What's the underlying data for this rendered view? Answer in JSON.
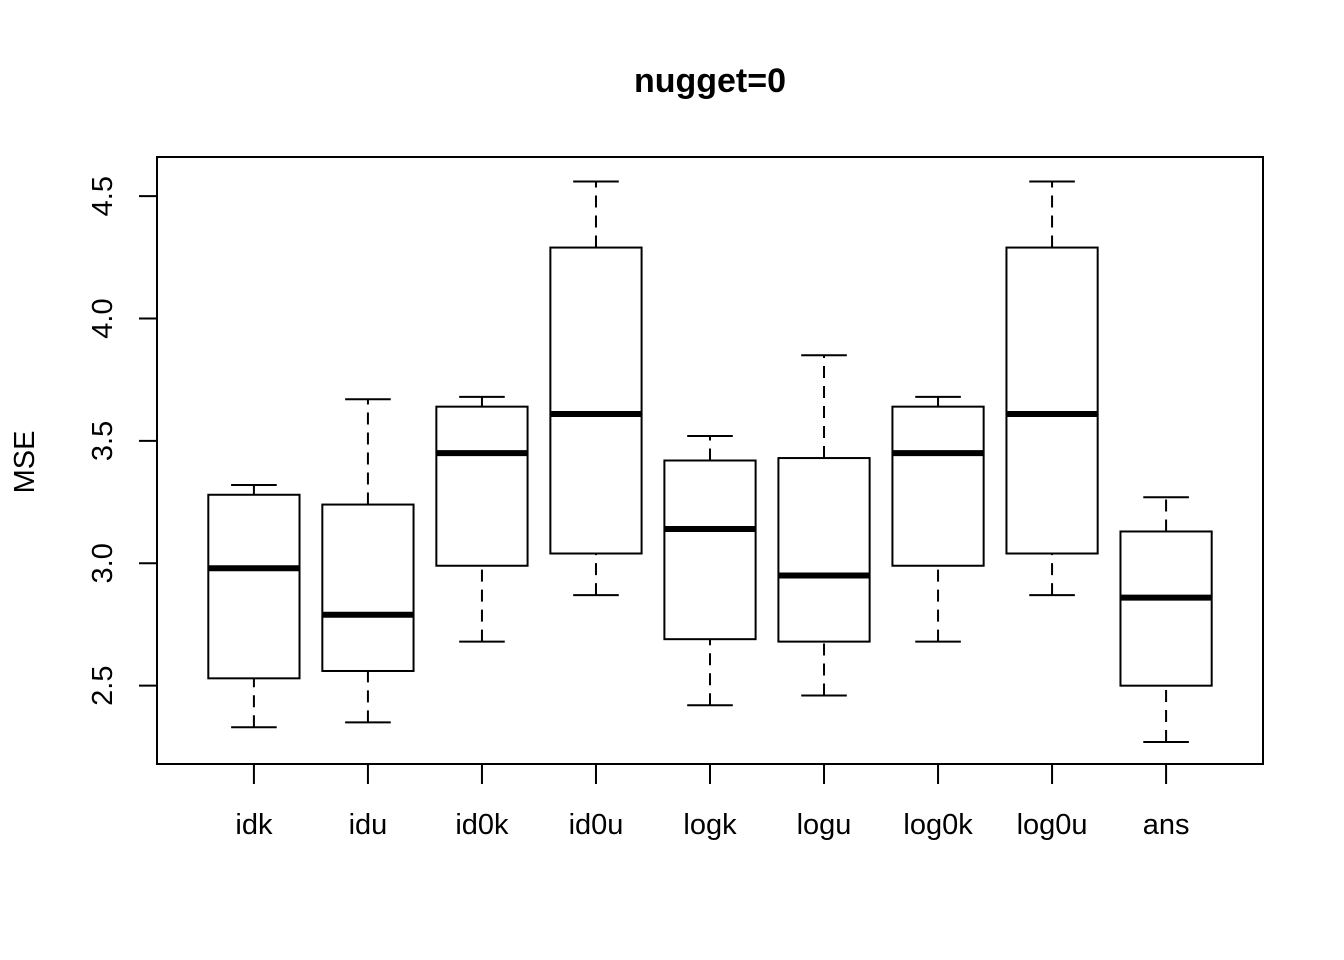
{
  "chart_data": {
    "type": "box",
    "title": "nugget=0",
    "xlabel": "",
    "ylabel": "MSE",
    "ylim": [
      2.18,
      4.66
    ],
    "yticks": [
      2.5,
      3.0,
      3.5,
      4.0,
      4.5
    ],
    "ytick_labels": [
      "2.5",
      "3.0",
      "3.5",
      "4.0",
      "4.5"
    ],
    "grid": false,
    "categories": [
      "idk",
      "idu",
      "id0k",
      "id0u",
      "logk",
      "logu",
      "log0k",
      "log0u",
      "ans"
    ],
    "boxes": [
      {
        "label": "idk",
        "whisker_low": 2.33,
        "q1": 2.53,
        "median": 2.98,
        "q3": 3.28,
        "whisker_high": 3.32
      },
      {
        "label": "idu",
        "whisker_low": 2.35,
        "q1": 2.56,
        "median": 2.79,
        "q3": 3.24,
        "whisker_high": 3.67
      },
      {
        "label": "id0k",
        "whisker_low": 2.68,
        "q1": 2.99,
        "median": 3.45,
        "q3": 3.64,
        "whisker_high": 3.68
      },
      {
        "label": "id0u",
        "whisker_low": 2.87,
        "q1": 3.04,
        "median": 3.61,
        "q3": 4.29,
        "whisker_high": 4.56
      },
      {
        "label": "logk",
        "whisker_low": 2.42,
        "q1": 2.69,
        "median": 3.14,
        "q3": 3.42,
        "whisker_high": 3.52
      },
      {
        "label": "logu",
        "whisker_low": 2.46,
        "q1": 2.68,
        "median": 2.95,
        "q3": 3.43,
        "whisker_high": 3.85
      },
      {
        "label": "log0k",
        "whisker_low": 2.68,
        "q1": 2.99,
        "median": 3.45,
        "q3": 3.64,
        "whisker_high": 3.68
      },
      {
        "label": "log0u",
        "whisker_low": 2.87,
        "q1": 3.04,
        "median": 3.61,
        "q3": 4.29,
        "whisker_high": 4.56
      },
      {
        "label": "ans",
        "whisker_low": 2.27,
        "q1": 2.5,
        "median": 2.86,
        "q3": 3.13,
        "whisker_high": 3.27
      }
    ]
  }
}
